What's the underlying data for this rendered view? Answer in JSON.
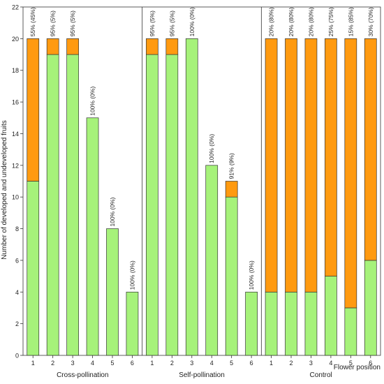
{
  "chart_data": {
    "type": "bar",
    "stacked": true,
    "ylabel": "Number of developed and undeveloped fruits",
    "xlabel": "Flower position",
    "ylim": [
      0,
      22
    ],
    "yticks": [
      0,
      2,
      4,
      6,
      8,
      10,
      12,
      14,
      16,
      18,
      20,
      22
    ],
    "grid": false,
    "colors": {
      "developed": "#a6f27a",
      "undeveloped": "#ff9a10"
    },
    "groups": [
      {
        "label": "Cross-pollination",
        "categories": [
          "1",
          "2",
          "3",
          "4",
          "5",
          "6"
        ],
        "developed": [
          11,
          19,
          19,
          15,
          8,
          4
        ],
        "undeveloped": [
          9,
          1,
          1,
          0,
          0,
          0
        ],
        "labels": [
          "55% (45%)",
          "95% (5%)",
          "95% (5%)",
          "100% (0%)",
          "100% (0%)",
          "100% (0%)"
        ]
      },
      {
        "label": "Self-pollination",
        "categories": [
          "1",
          "2",
          "3",
          "4",
          "5",
          "6"
        ],
        "developed": [
          19,
          19,
          20,
          12,
          10,
          4
        ],
        "undeveloped": [
          1,
          1,
          0,
          0,
          1,
          0
        ],
        "labels": [
          "95% (5%)",
          "95% (5%)",
          "100% (0%)",
          "100% (0%)",
          "91% (9%)",
          "100% (0%)"
        ]
      },
      {
        "label": "Control",
        "categories": [
          "1",
          "2",
          "3",
          "4",
          "5",
          "6"
        ],
        "developed": [
          4,
          4,
          4,
          5,
          3,
          6
        ],
        "undeveloped": [
          16,
          16,
          16,
          15,
          17,
          14
        ],
        "labels": [
          "20% (80%)",
          "20% (80%)",
          "20% (80%)",
          "25% (75%)",
          "15% (85%)",
          "30% (70%)"
        ]
      }
    ]
  }
}
